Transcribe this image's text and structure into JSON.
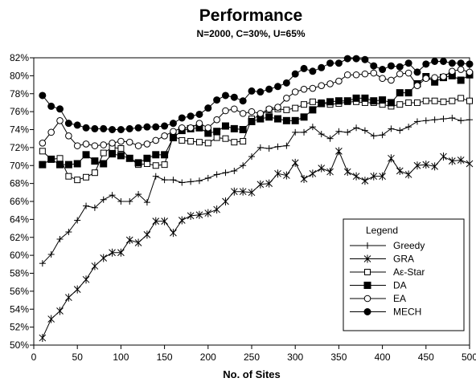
{
  "chart_data": {
    "type": "line",
    "title": "Performance",
    "subtitle": "N=2000, C=30%, U=65%",
    "xlabel": "No. of Sites",
    "ylabel": "",
    "xlim": [
      0,
      500
    ],
    "ylim": [
      0.5,
      0.82
    ],
    "grid": false,
    "legend": {
      "title": "Legend",
      "placement": "bottom-right"
    },
    "x_ticks": [
      "0",
      "50",
      "100",
      "150",
      "200",
      "250",
      "300",
      "350",
      "400",
      "450",
      "500"
    ],
    "y_ticks": [
      "50%",
      "52%",
      "54%",
      "56%",
      "58%",
      "60%",
      "62%",
      "64%",
      "66%",
      "68%",
      "70%",
      "72%",
      "74%",
      "76%",
      "78%",
      "80%",
      "82%"
    ],
    "x": [
      10,
      20,
      30,
      40,
      50,
      60,
      70,
      80,
      90,
      100,
      110,
      120,
      130,
      140,
      150,
      160,
      170,
      180,
      190,
      200,
      210,
      220,
      230,
      240,
      250,
      260,
      270,
      280,
      290,
      300,
      310,
      320,
      330,
      340,
      350,
      360,
      370,
      380,
      390,
      400,
      410,
      420,
      430,
      440,
      450,
      460,
      470,
      480,
      490,
      500
    ],
    "series": [
      {
        "name": "Greedy",
        "marker": "plus",
        "values": [
          0.591,
          0.601,
          0.618,
          0.626,
          0.639,
          0.655,
          0.653,
          0.662,
          0.667,
          0.66,
          0.66,
          0.668,
          0.659,
          0.688,
          0.684,
          0.684,
          0.681,
          0.682,
          0.683,
          0.686,
          0.69,
          0.692,
          0.694,
          0.7,
          0.71,
          0.72,
          0.719,
          0.721,
          0.722,
          0.737,
          0.737,
          0.743,
          0.735,
          0.73,
          0.738,
          0.737,
          0.742,
          0.739,
          0.733,
          0.734,
          0.741,
          0.739,
          0.743,
          0.749,
          0.75,
          0.751,
          0.752,
          0.753,
          0.75,
          0.751
        ]
      },
      {
        "name": "GRA",
        "marker": "star",
        "values": [
          0.508,
          0.529,
          0.538,
          0.553,
          0.562,
          0.573,
          0.588,
          0.597,
          0.603,
          0.603,
          0.617,
          0.614,
          0.623,
          0.638,
          0.638,
          0.625,
          0.639,
          0.644,
          0.645,
          0.647,
          0.651,
          0.66,
          0.671,
          0.671,
          0.67,
          0.679,
          0.68,
          0.691,
          0.689,
          0.703,
          0.685,
          0.691,
          0.697,
          0.693,
          0.716,
          0.693,
          0.688,
          0.683,
          0.688,
          0.688,
          0.708,
          0.694,
          0.69,
          0.7,
          0.701,
          0.699,
          0.71,
          0.705,
          0.706,
          0.702
        ]
      },
      {
        "name": "Aε-Star",
        "marker": "square-open",
        "values": [
          0.716,
          0.707,
          0.708,
          0.688,
          0.684,
          0.687,
          0.692,
          0.714,
          0.72,
          0.719,
          0.708,
          0.701,
          0.702,
          0.7,
          0.701,
          0.733,
          0.728,
          0.727,
          0.726,
          0.725,
          0.731,
          0.73,
          0.726,
          0.727,
          0.752,
          0.756,
          0.762,
          0.763,
          0.762,
          0.764,
          0.768,
          0.771,
          0.77,
          0.768,
          0.769,
          0.771,
          0.771,
          0.77,
          0.77,
          0.768,
          0.766,
          0.768,
          0.77,
          0.77,
          0.772,
          0.772,
          0.771,
          0.772,
          0.775,
          0.772
        ]
      },
      {
        "name": "DA",
        "marker": "square-filled",
        "values": [
          0.701,
          0.707,
          0.701,
          0.701,
          0.702,
          0.712,
          0.705,
          0.702,
          0.713,
          0.711,
          0.708,
          0.703,
          0.708,
          0.712,
          0.712,
          0.731,
          0.739,
          0.741,
          0.742,
          0.736,
          0.738,
          0.744,
          0.741,
          0.74,
          0.749,
          0.752,
          0.754,
          0.752,
          0.75,
          0.75,
          0.754,
          0.762,
          0.769,
          0.771,
          0.772,
          0.772,
          0.775,
          0.775,
          0.772,
          0.773,
          0.77,
          0.781,
          0.781,
          0.791,
          0.799,
          0.793,
          0.798,
          0.8,
          0.795,
          0.801
        ]
      },
      {
        "name": "EA",
        "marker": "circle-open",
        "values": [
          0.725,
          0.737,
          0.75,
          0.733,
          0.722,
          0.724,
          0.722,
          0.723,
          0.725,
          0.727,
          0.726,
          0.722,
          0.724,
          0.728,
          0.733,
          0.738,
          0.742,
          0.742,
          0.747,
          0.742,
          0.751,
          0.761,
          0.763,
          0.758,
          0.76,
          0.758,
          0.763,
          0.765,
          0.775,
          0.782,
          0.785,
          0.786,
          0.789,
          0.791,
          0.794,
          0.801,
          0.801,
          0.802,
          0.803,
          0.797,
          0.795,
          0.802,
          0.803,
          0.789,
          0.797,
          0.798,
          0.799,
          0.805,
          0.807,
          0.804
        ]
      },
      {
        "name": "MECH",
        "marker": "circle-filled",
        "values": [
          0.778,
          0.766,
          0.763,
          0.747,
          0.745,
          0.742,
          0.741,
          0.741,
          0.74,
          0.74,
          0.741,
          0.742,
          0.743,
          0.743,
          0.744,
          0.747,
          0.753,
          0.755,
          0.757,
          0.764,
          0.773,
          0.778,
          0.776,
          0.772,
          0.783,
          0.782,
          0.785,
          0.788,
          0.792,
          0.802,
          0.808,
          0.805,
          0.809,
          0.814,
          0.814,
          0.819,
          0.819,
          0.818,
          0.811,
          0.807,
          0.811,
          0.81,
          0.814,
          0.804,
          0.813,
          0.816,
          0.816,
          0.814,
          0.814,
          0.813
        ]
      }
    ]
  }
}
